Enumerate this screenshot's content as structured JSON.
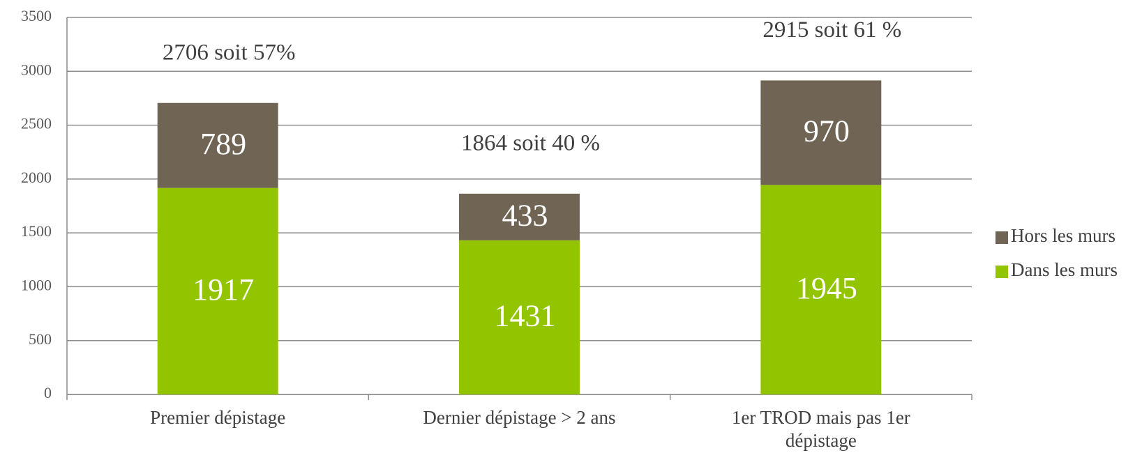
{
  "chart_data": {
    "type": "stacked_bar",
    "categories": [
      "Premier dépistage",
      "Dernier dépistage > 2 ans",
      "1er TROD mais pas 1er dépistage"
    ],
    "series": [
      {
        "name": "Dans les murs",
        "color": "#92c400",
        "values": [
          1917,
          1431,
          1945
        ]
      },
      {
        "name": "Hors les murs",
        "color": "#706554",
        "values": [
          789,
          433,
          970
        ]
      }
    ],
    "annotations": [
      "2706 soit 57%",
      "1864 soit 40 %",
      "2915 soit 61 %"
    ],
    "ylim": [
      0,
      3500
    ],
    "yticks": [
      0,
      500,
      1000,
      1500,
      2000,
      2500,
      3000,
      3500
    ],
    "grid": true,
    "legend": "right"
  }
}
